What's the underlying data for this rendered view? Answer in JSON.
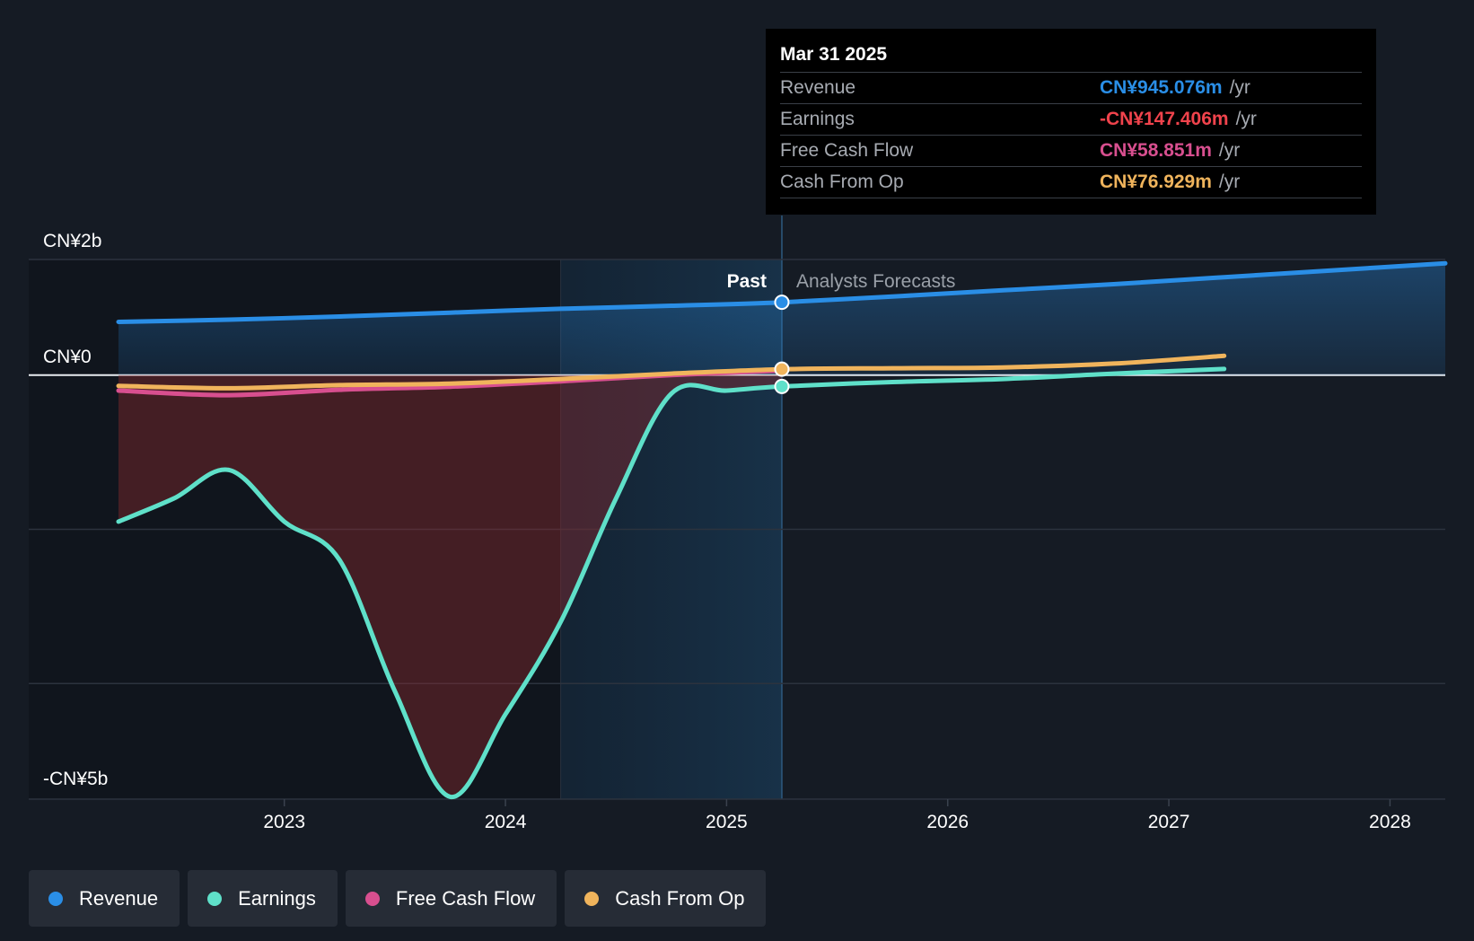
{
  "chart_data": {
    "type": "line",
    "title": "",
    "xlabel": "",
    "ylabel": "",
    "ylim": [
      -5.5,
      1.5
    ],
    "y_tick_labels": [
      {
        "value": 1.5,
        "label": "CN¥2b"
      },
      {
        "value": 0,
        "label": "CN¥0"
      },
      {
        "value": -5.5,
        "label": "-CN¥5b"
      }
    ],
    "y_gridlines": [
      1.5,
      0,
      -2,
      -4,
      -5.5
    ],
    "xlim": [
      2022.1,
      2028.25
    ],
    "x_ticks": [
      2023,
      2024,
      2025,
      2026,
      2027,
      2028
    ],
    "divider_x": 2025.25,
    "divider_labels": {
      "past": "Past",
      "forecast": "Analysts Forecasts"
    },
    "legend_position": "bottom-left",
    "series": [
      {
        "name": "Revenue",
        "color": "#2a8ee6",
        "fill": true,
        "points": [
          [
            2022.25,
            0.69
          ],
          [
            2022.75,
            0.72
          ],
          [
            2023.25,
            0.76
          ],
          [
            2023.75,
            0.81
          ],
          [
            2024.25,
            0.86
          ],
          [
            2024.75,
            0.9
          ],
          [
            2025.25,
            0.945
          ],
          [
            2025.75,
            1.02
          ],
          [
            2026.25,
            1.1
          ],
          [
            2026.75,
            1.18
          ],
          [
            2027.25,
            1.27
          ],
          [
            2027.75,
            1.36
          ],
          [
            2028.25,
            1.45
          ]
        ]
      },
      {
        "name": "Earnings",
        "color": "#5fe0c9",
        "fill": true,
        "points": [
          [
            2022.25,
            -1.9
          ],
          [
            2022.5,
            -1.6
          ],
          [
            2022.75,
            -1.23
          ],
          [
            2023.0,
            -1.9
          ],
          [
            2023.25,
            -2.4
          ],
          [
            2023.5,
            -4.1
          ],
          [
            2023.75,
            -5.47
          ],
          [
            2024.0,
            -4.4
          ],
          [
            2024.25,
            -3.2
          ],
          [
            2024.5,
            -1.6
          ],
          [
            2024.75,
            -0.24
          ],
          [
            2025.0,
            -0.2
          ],
          [
            2025.25,
            -0.147
          ],
          [
            2025.75,
            -0.09
          ],
          [
            2026.25,
            -0.05
          ],
          [
            2026.75,
            0.02
          ],
          [
            2027.25,
            0.08
          ]
        ]
      },
      {
        "name": "Free Cash Flow",
        "color": "#d84f8f",
        "fill": false,
        "points": [
          [
            2022.25,
            -0.2
          ],
          [
            2022.75,
            -0.26
          ],
          [
            2023.25,
            -0.19
          ],
          [
            2023.75,
            -0.15
          ],
          [
            2024.25,
            -0.08
          ],
          [
            2024.75,
            0.0
          ],
          [
            2025.25,
            0.059
          ]
        ]
      },
      {
        "name": "Cash From Op",
        "color": "#f0b45c",
        "fill": false,
        "points": [
          [
            2022.25,
            -0.14
          ],
          [
            2022.75,
            -0.17
          ],
          [
            2023.25,
            -0.13
          ],
          [
            2023.75,
            -0.11
          ],
          [
            2024.25,
            -0.05
          ],
          [
            2024.75,
            0.02
          ],
          [
            2025.25,
            0.077
          ],
          [
            2025.75,
            0.09
          ],
          [
            2026.25,
            0.1
          ],
          [
            2026.75,
            0.15
          ],
          [
            2027.25,
            0.25
          ]
        ]
      }
    ]
  },
  "tooltip": {
    "date": "Mar 31 2025",
    "unit": "/yr",
    "rows": [
      {
        "label": "Revenue",
        "value": "CN¥945.076m",
        "color": "#2a8ee6"
      },
      {
        "label": "Earnings",
        "value": "-CN¥147.406m",
        "color": "#f0434c"
      },
      {
        "label": "Free Cash Flow",
        "value": "CN¥58.851m",
        "color": "#d84f8f"
      },
      {
        "label": "Cash From Op",
        "value": "CN¥76.929m",
        "color": "#f0b45c"
      }
    ]
  },
  "legend": [
    {
      "label": "Revenue",
      "color": "#2a8ee6"
    },
    {
      "label": "Earnings",
      "color": "#5fe0c9"
    },
    {
      "label": "Free Cash Flow",
      "color": "#d84f8f"
    },
    {
      "label": "Cash From Op",
      "color": "#f0b45c"
    }
  ]
}
